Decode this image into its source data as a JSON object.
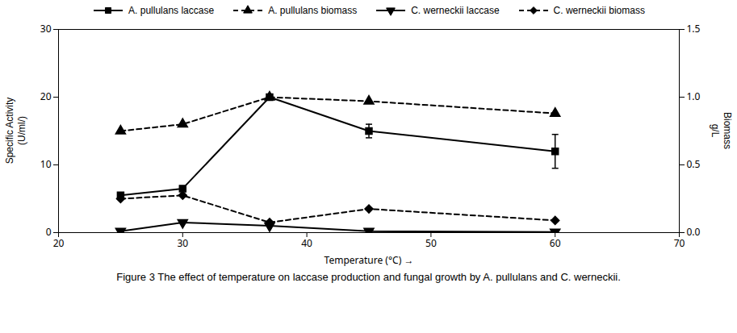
{
  "chart_data": {
    "type": "line",
    "title": "Figure 3 The effect of temperature on laccase production and fungal growth by A. pullulans and C. werneckii.",
    "x": [
      25,
      30,
      37,
      45,
      60
    ],
    "xlabel": "Temperature (°C)",
    "ylabel": "Specific Activity\n(U/ml/)",
    "y2label": "Biomass\ng/L",
    "xlim": [
      20,
      70
    ],
    "xticks": [
      20,
      30,
      40,
      50,
      60,
      70
    ],
    "ylim": [
      0,
      30
    ],
    "yticks": [
      0,
      10,
      20,
      30
    ],
    "y2lim": [
      0.0,
      1.5
    ],
    "y2ticks": [
      {
        "value": 0,
        "label": "0.0"
      },
      0.5,
      {
        "value": 1,
        "label": "1.0"
      },
      1.5
    ],
    "grid": false,
    "legend": "top",
    "series": [
      {
        "name": "A. pullulans laccase",
        "color": "black",
        "marker": "square",
        "line_style": "solid",
        "values": [
          5.5,
          6.5,
          20,
          15,
          12
        ],
        "yerr": [
          0,
          0,
          0,
          1.0,
          2.5
        ]
      },
      {
        "name": "A. pullulans biomass",
        "color": "black",
        "marker": "triangle-up",
        "line_style": "dashed",
        "axis": "y2",
        "values": [
          0.75,
          0.8,
          1.0,
          0.97,
          0.88
        ]
      },
      {
        "name": "C. werneckii laccase",
        "color": "black",
        "marker": "triangle-down",
        "line_style": "solid",
        "values": [
          0.2,
          1.5,
          1.0,
          0.2,
          0.1
        ]
      },
      {
        "name": "C. werneckii biomass",
        "color": "black",
        "marker": "diamond",
        "line_style": "dashed",
        "values": [
          5.0,
          5.5,
          1.5,
          3.5,
          1.8
        ]
      }
    ]
  }
}
